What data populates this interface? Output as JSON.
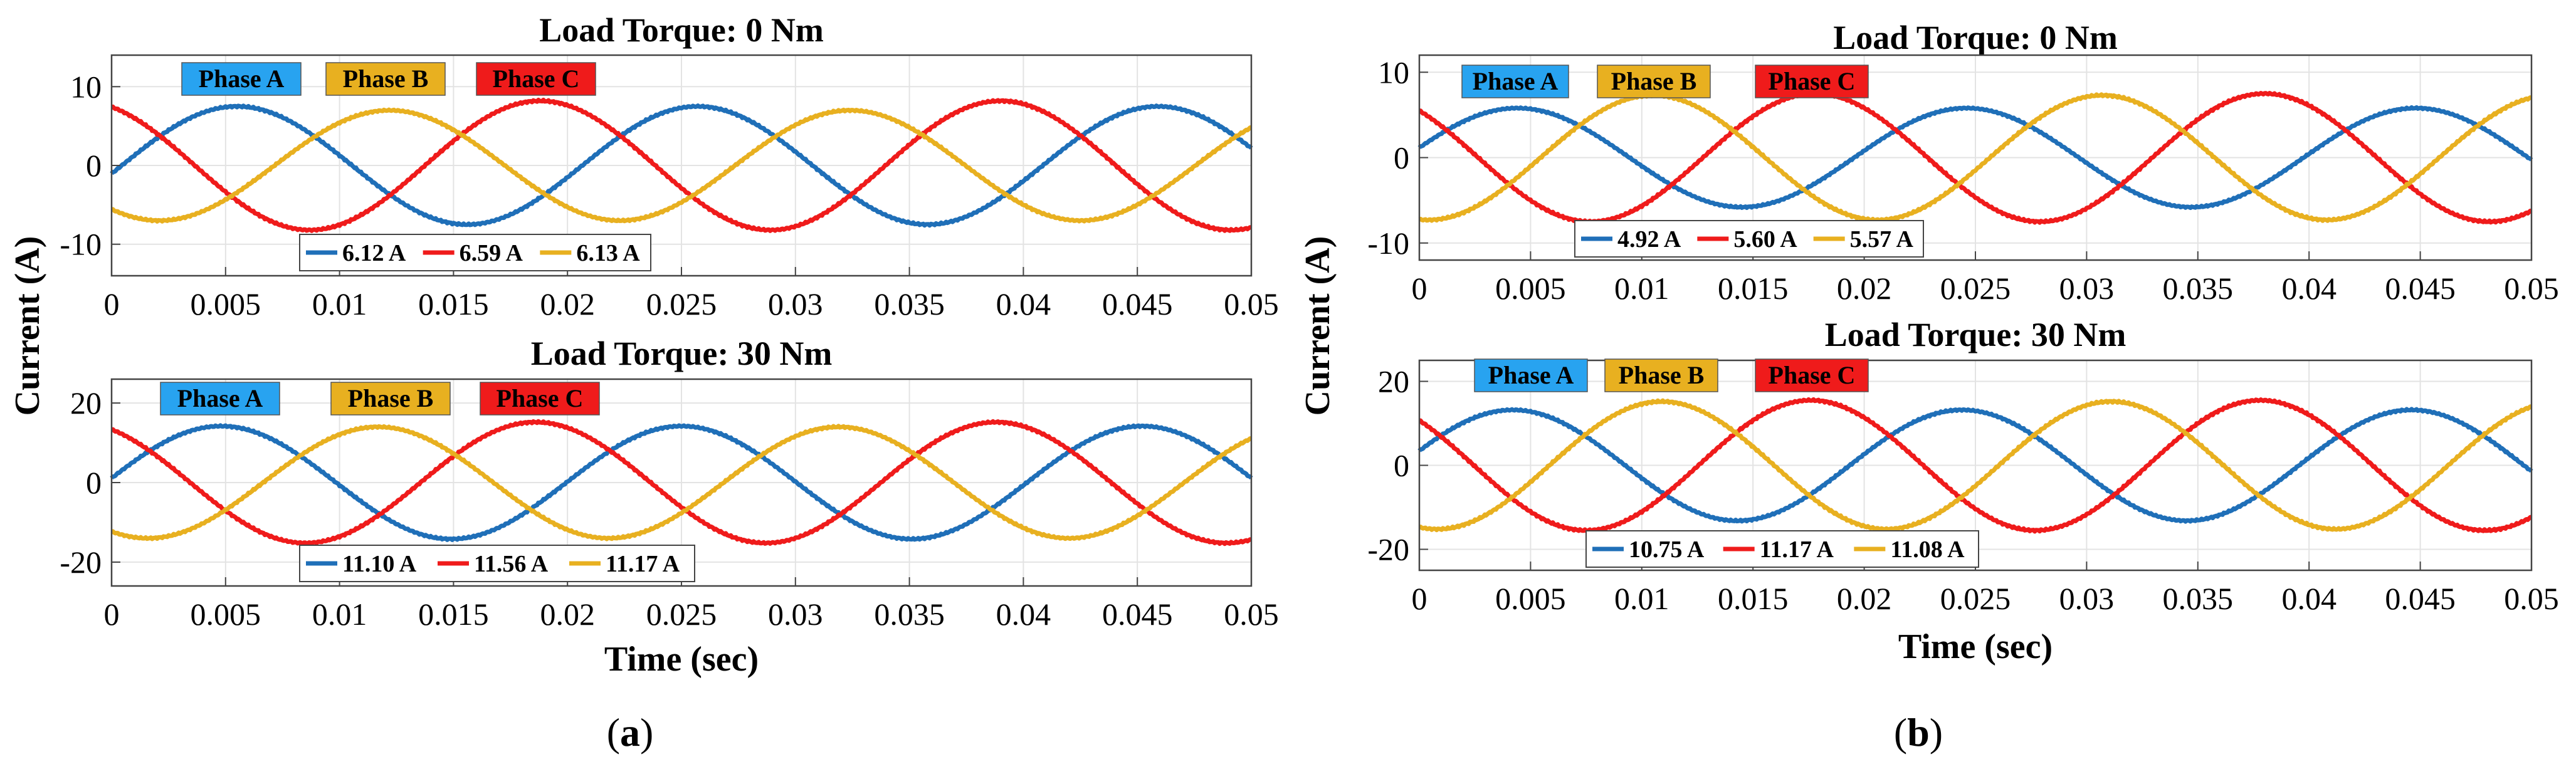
{
  "figure": {
    "shared_ylabel": "Current (A)",
    "xlabel": "Time (sec)",
    "colors": {
      "A": "#1f6fb8",
      "B": "#e8b020",
      "C": "#ef1b1b"
    },
    "badge_colors": {
      "A": "#28a3f0",
      "B": "#e8b020",
      "C": "#ef1b1b"
    }
  },
  "chart_data": [
    {
      "type": "line",
      "id": "a1",
      "title": "Load Torque: 0 Nm",
      "xlabel": "",
      "ylabel": "",
      "xlim": [
        0,
        0.05
      ],
      "ylim": [
        -14,
        14
      ],
      "yticks": [
        -10,
        0,
        10
      ],
      "xticks": [
        "0",
        "0.005",
        "0.01",
        "0.015",
        "0.02",
        "0.025",
        "0.03",
        "0.035",
        "0.04",
        "0.045",
        "0.05"
      ],
      "phase_labels": [
        "Phase A",
        "Phase B",
        "Phase C"
      ],
      "legend": [
        "6.12 A",
        "6.59 A",
        "6.13 A"
      ],
      "series": [
        {
          "name": "Phase A",
          "rms": "6.12 A",
          "amplitude": 7.5,
          "peak_time": 0.0055,
          "frequency_hz": 49.5
        },
        {
          "name": "Phase C",
          "rms": "6.59 A",
          "amplitude": 8.2,
          "peak_time": 0.0188,
          "frequency_hz": 49.5
        },
        {
          "name": "Phase B",
          "rms": "6.13 A",
          "amplitude": 7.0,
          "peak_time": 0.0122,
          "frequency_hz": 49.5
        }
      ]
    },
    {
      "type": "line",
      "id": "a2",
      "title": "Load Torque: 30 Nm",
      "xlabel": "Time (sec)",
      "ylabel": "",
      "xlim": [
        0,
        0.05
      ],
      "ylim": [
        -26,
        26
      ],
      "yticks": [
        -20,
        0,
        20
      ],
      "xticks": [
        "0",
        "0.005",
        "0.01",
        "0.015",
        "0.02",
        "0.025",
        "0.03",
        "0.035",
        "0.04",
        "0.045",
        "0.05"
      ],
      "phase_labels": [
        "Phase A",
        "Phase B",
        "Phase C"
      ],
      "legend": [
        "11.10 A",
        "11.56 A",
        "11.17 A"
      ],
      "series": [
        {
          "name": "Phase A",
          "rms": "11.10 A",
          "amplitude": 14.2,
          "peak_time": 0.0048,
          "frequency_hz": 49.5
        },
        {
          "name": "Phase C",
          "rms": "11.56 A",
          "amplitude": 15.2,
          "peak_time": 0.0186,
          "frequency_hz": 49.5
        },
        {
          "name": "Phase B",
          "rms": "11.17 A",
          "amplitude": 14.0,
          "peak_time": 0.0117,
          "frequency_hz": 49.5
        }
      ]
    },
    {
      "type": "line",
      "id": "b1",
      "title": "Load Torque: 0 Nm",
      "xlabel": "",
      "ylabel": "",
      "xlim": [
        0,
        0.05
      ],
      "ylim": [
        -12,
        12
      ],
      "yticks": [
        -10,
        0,
        10
      ],
      "xticks": [
        "0",
        "0.005",
        "0.01",
        "0.015",
        "0.02",
        "0.025",
        "0.03",
        "0.035",
        "0.04",
        "0.045",
        "0.05"
      ],
      "phase_labels": [
        "Phase A",
        "Phase B",
        "Phase C"
      ],
      "legend": [
        "4.92 A",
        "5.60 A",
        "5.57 A"
      ],
      "series": [
        {
          "name": "Phase A",
          "rms": "4.92 A",
          "amplitude": 5.8,
          "peak_time": 0.0044,
          "frequency_hz": 49.5
        },
        {
          "name": "Phase C",
          "rms": "5.60 A",
          "amplitude": 7.5,
          "peak_time": 0.0178,
          "frequency_hz": 49.5
        },
        {
          "name": "Phase B",
          "rms": "5.57 A",
          "amplitude": 7.3,
          "peak_time": 0.0105,
          "frequency_hz": 49.5
        }
      ]
    },
    {
      "type": "line",
      "id": "b2",
      "title": "Load Torque: 30 Nm",
      "xlabel": "Time (sec)",
      "ylabel": "",
      "xlim": [
        0,
        0.05
      ],
      "ylim": [
        -25,
        25
      ],
      "yticks": [
        -20,
        0,
        20
      ],
      "xticks": [
        "0",
        "0.005",
        "0.01",
        "0.015",
        "0.02",
        "0.025",
        "0.03",
        "0.035",
        "0.04",
        "0.045",
        "0.05"
      ],
      "phase_labels": [
        "Phase A",
        "Phase B",
        "Phase C"
      ],
      "legend": [
        "10.75 A",
        "11.17 A",
        "11.08 A"
      ],
      "series": [
        {
          "name": "Phase A",
          "rms": "10.75 A",
          "amplitude": 13.2,
          "peak_time": 0.0042,
          "frequency_hz": 49.5
        },
        {
          "name": "Phase C",
          "rms": "11.17 A",
          "amplitude": 15.5,
          "peak_time": 0.0176,
          "frequency_hz": 49.5
        },
        {
          "name": "Phase B",
          "rms": "11.08 A",
          "amplitude": 15.2,
          "peak_time": 0.0109,
          "frequency_hz": 49.5
        }
      ]
    }
  ],
  "captions": {
    "a": {
      "open": "(",
      "letter": "a",
      "close": ")"
    },
    "b": {
      "open": "(",
      "letter": "b",
      "close": ")"
    }
  }
}
